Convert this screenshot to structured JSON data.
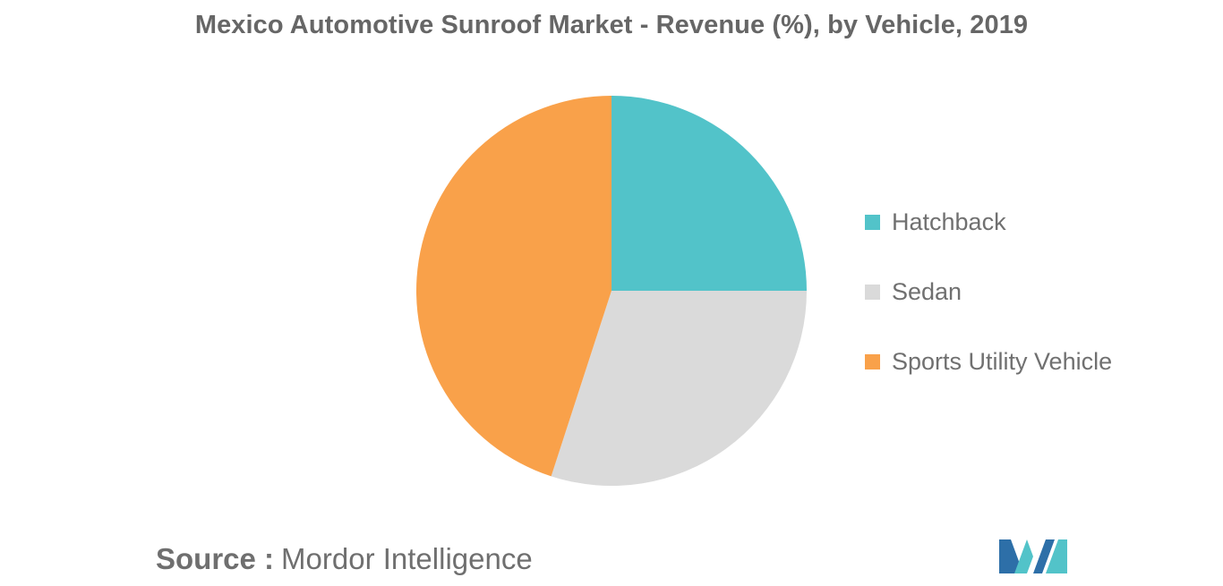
{
  "chart_data": {
    "type": "pie",
    "title": "Mexico Automotive Sunroof Market - Revenue (%), by Vehicle, 2019",
    "categories": [
      "Hatchback",
      "Sedan",
      "Sports Utility Vehicle"
    ],
    "values": [
      25,
      30,
      45
    ],
    "colors": [
      "#52c3c9",
      "#dadada",
      "#f9a14a"
    ],
    "legend_position": "right"
  },
  "source": {
    "key": "Source :",
    "value": "Mordor Intelligence"
  },
  "logo": {
    "colors": [
      "#2d6fa8",
      "#52c3c9"
    ]
  }
}
